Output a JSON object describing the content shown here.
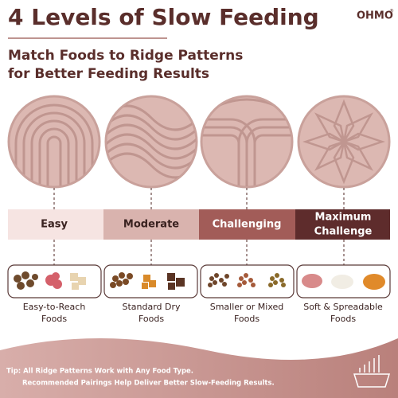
{
  "header": {
    "title": "4 Levels of Slow Feeding",
    "brand": "OHMO",
    "brand_mark": "®",
    "subtitle": [
      "Match Foods to Ridge Patterns",
      "for Better Feeding Results"
    ]
  },
  "levels": [
    {
      "label": [
        "Easy"
      ],
      "foods": [
        "Easy-to-Reach",
        "Foods"
      ]
    },
    {
      "label": [
        "Moderate"
      ],
      "foods": [
        "Standard Dry",
        "Foods"
      ]
    },
    {
      "label": [
        "Challenging"
      ],
      "foods": [
        "Smaller or Mixed",
        "Foods"
      ]
    },
    {
      "label": [
        "Maximum",
        "Challenge"
      ],
      "foods": [
        "Soft & Spreadable",
        "Foods"
      ]
    }
  ],
  "footer": {
    "tip": [
      "Tip: All Ridge Patterns Work with Any Food Type.",
      "Recommended Pairings Help Deliver Better Slow-Feeding Results."
    ]
  }
}
